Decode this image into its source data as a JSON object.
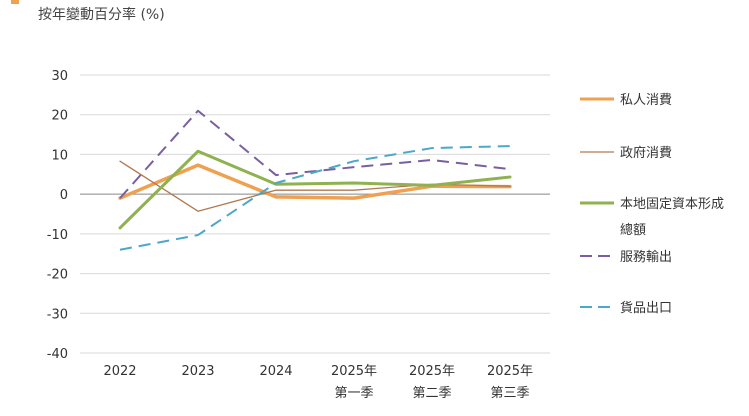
{
  "header": {
    "marker_color": "#f0a050"
  },
  "chart_data": {
    "type": "line",
    "title": "",
    "subtitle": "按年變動百分率 (%)",
    "xlabel": "",
    "ylabel": "按年變動百分率 (%)",
    "ylim": [
      -40,
      30
    ],
    "yticks": [
      30,
      20,
      10,
      0,
      -10,
      -20,
      -30,
      -40
    ],
    "grid": true,
    "legend_position": "right",
    "categories": [
      [
        "2022"
      ],
      [
        "2023"
      ],
      [
        "2024"
      ],
      [
        "2025年",
        "第一季"
      ],
      [
        "2025年",
        "第二季"
      ],
      [
        "2025年",
        "第三季"
      ]
    ],
    "series": [
      {
        "name": "私人消費",
        "legend_lines": [
          "私人消費"
        ],
        "color": "#f0a050",
        "style": "solid",
        "width": 3.5,
        "values": [
          -1.0,
          7.3,
          -0.7,
          -1.0,
          2.0,
          1.9
        ]
      },
      {
        "name": "政府消費",
        "legend_lines": [
          "政府消費"
        ],
        "color": "#b07a50",
        "style": "solid",
        "width": 1.3,
        "values": [
          8.3,
          -4.3,
          1.0,
          1.0,
          2.5,
          2.0
        ]
      },
      {
        "name": "本地固定資本形成總額",
        "legend_lines": [
          "本地固定資本形成",
          "總額"
        ],
        "color": "#8fb150",
        "style": "solid",
        "width": 3,
        "values": [
          -8.5,
          10.8,
          2.5,
          2.8,
          2.2,
          4.3
        ]
      },
      {
        "name": "服務輸出",
        "legend_lines": [
          "服務輸出"
        ],
        "color": "#7a5fa0",
        "style": "dashed",
        "width": 2,
        "values": [
          -1.0,
          21.0,
          4.8,
          6.8,
          8.6,
          6.3
        ]
      },
      {
        "name": "貨品出口",
        "legend_lines": [
          "貨品出口"
        ],
        "color": "#4aa8c8",
        "style": "dashed",
        "width": 2,
        "values": [
          -14.0,
          -10.3,
          2.8,
          8.3,
          11.6,
          12.1
        ]
      }
    ]
  }
}
